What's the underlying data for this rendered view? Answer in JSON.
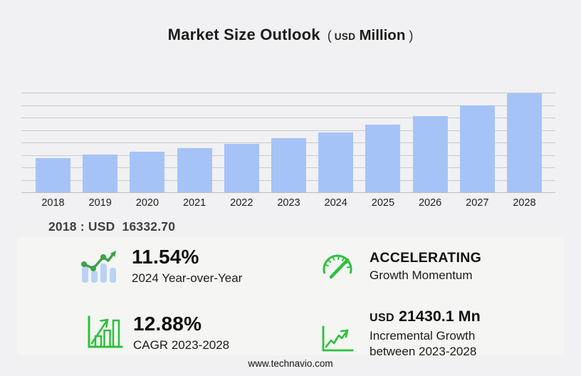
{
  "title": {
    "main": "Market Size Outlook",
    "open_paren": "(",
    "currency": "USD",
    "scale": "Million",
    "close_paren": ")"
  },
  "chart_data": {
    "type": "bar",
    "title": "Market Size Outlook (USD Million)",
    "categories": [
      "2018",
      "2019",
      "2020",
      "2021",
      "2022",
      "2023",
      "2024",
      "2025",
      "2026",
      "2027",
      "2028"
    ],
    "values": [
      16332.7,
      17925,
      19290,
      21210,
      23250,
      25764,
      28737,
      32330,
      36520,
      41620,
      47194.1
    ],
    "unit": "USD Million",
    "xlabel": "",
    "ylabel": "",
    "ylim": [
      0,
      47640
    ],
    "y_axis_labels_visible": false,
    "gridline_count": 9,
    "legend": "none",
    "bar_color": "#a6c3f8",
    "gridline_color": "#c9c9cb"
  },
  "callout": {
    "text": "2018 : USD  16332.70"
  },
  "stats": {
    "yoy": {
      "icon": "bar-chart-trend-icon",
      "value": "11.54%",
      "label": "2024 Year-over-Year"
    },
    "momentum": {
      "icon": "speedometer-icon",
      "value": "ACCELERATING",
      "label": "Growth Momentum"
    },
    "cagr": {
      "icon": "growth-bars-icon",
      "value": "12.88%",
      "label": "CAGR 2023-2028"
    },
    "incremental": {
      "icon": "line-growth-icon",
      "currency": "USD",
      "value": "21430.1 Mn",
      "label_line1": "Incremental Growth",
      "label_line2": "between 2023-2028"
    }
  },
  "footer": {
    "website": "www.technavio.com"
  },
  "colors": {
    "page_bg": "#f1f1f3",
    "panel_bg": "#f5f5f3",
    "bar_fill": "#a6c3f8",
    "icon_green_bright": "#2cc13c",
    "icon_green_dark": "#3ba24a",
    "icon_bar_blue": "#b9d2f6",
    "title_text": "#1c1c1c",
    "callout_text": "#3f3f3f",
    "gridline": "#c9c9cb"
  }
}
